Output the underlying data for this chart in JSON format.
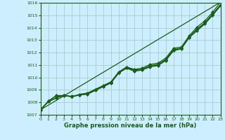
{
  "xlabel": "Graphe pression niveau de la mer (hPa)",
  "bg_color": "#cceeff",
  "grid_color": "#aacccc",
  "line_color": "#1a5c1a",
  "xlim": [
    0,
    23
  ],
  "ylim": [
    1007,
    1016
  ],
  "xticks": [
    0,
    1,
    2,
    3,
    4,
    5,
    6,
    7,
    8,
    9,
    10,
    11,
    12,
    13,
    14,
    15,
    16,
    17,
    18,
    19,
    20,
    21,
    22,
    23
  ],
  "yticks": [
    1007,
    1008,
    1009,
    1010,
    1011,
    1012,
    1013,
    1014,
    1015,
    1016
  ],
  "line1": [
    1007.4,
    1008.05,
    1008.35,
    1008.6,
    1008.45,
    1008.65,
    1008.75,
    1009.05,
    1009.35,
    1009.65,
    1010.45,
    1010.85,
    1010.65,
    1010.75,
    1011.05,
    1011.15,
    1011.55,
    1012.35,
    1012.45,
    1013.35,
    1014.05,
    1014.55,
    1015.25,
    1016.05
  ],
  "line2": [
    1007.4,
    1008.05,
    1008.35,
    1008.55,
    1008.45,
    1008.6,
    1008.7,
    1009.0,
    1009.3,
    1009.6,
    1010.4,
    1010.8,
    1010.6,
    1010.65,
    1010.95,
    1011.05,
    1011.45,
    1012.25,
    1012.35,
    1013.25,
    1013.9,
    1014.4,
    1015.1,
    1015.85
  ],
  "line3": [
    1007.4,
    1008.1,
    1008.5,
    1008.5,
    1008.5,
    1008.6,
    1008.7,
    1009.0,
    1009.3,
    1009.6,
    1010.4,
    1010.75,
    1010.55,
    1010.65,
    1010.9,
    1011.0,
    1011.4,
    1012.2,
    1012.35,
    1013.25,
    1013.85,
    1014.35,
    1015.05,
    1015.8
  ],
  "line4": [
    1007.4,
    1008.1,
    1008.55,
    1008.55,
    1008.45,
    1008.6,
    1008.65,
    1008.95,
    1009.25,
    1009.55,
    1010.35,
    1010.75,
    1010.5,
    1010.6,
    1010.85,
    1010.95,
    1011.35,
    1012.15,
    1012.3,
    1013.2,
    1013.75,
    1014.3,
    1015.0,
    1015.75
  ],
  "line5_x": [
    0,
    23
  ],
  "line5": [
    1007.4,
    1016.05
  ]
}
